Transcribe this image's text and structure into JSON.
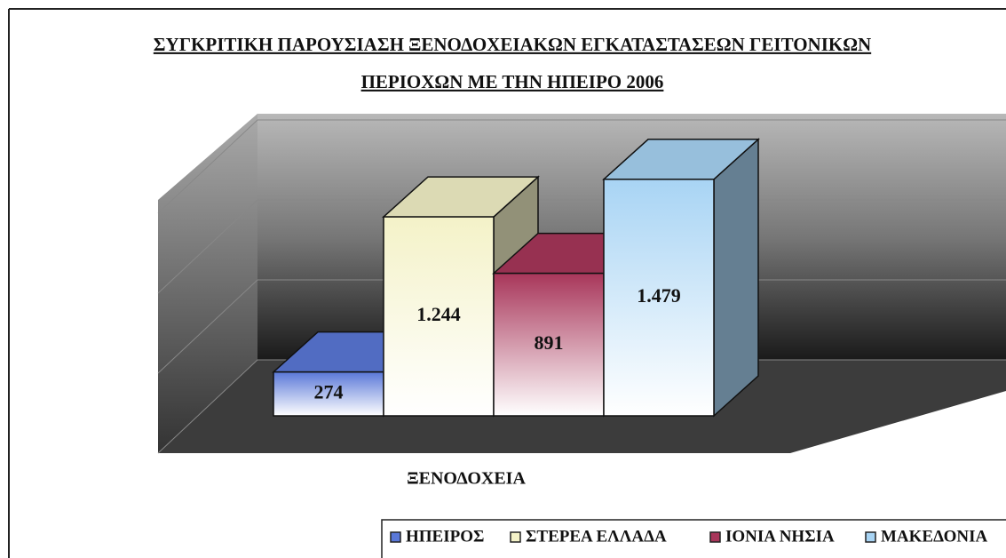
{
  "chart_data": {
    "type": "bar3d",
    "title": [
      "ΣΥΓΚΡΙΤΙΚΗ ΠΑΡΟΥΣΙΑΣΗ ΞΕΝΟΔΟΧΕΙΑΚΩΝ ΕΓΚΑΤΑΣΤΑΣΕΩΝ ΓΕΙΤΟΝΙΚΩΝ",
      "ΠΕΡΙΟΧΩΝ ΜΕ ΤΗΝ ΗΠΕΙΡΟ 2006"
    ],
    "categories": [
      "ΞΕΝΟΔΟΧΕΙΑ"
    ],
    "series": [
      {
        "name": "ΗΠΕΙΡΟΣ",
        "color": "#5a78d8",
        "values": [
          274
        ],
        "value_labels": [
          "274"
        ]
      },
      {
        "name": "ΣΤΕΡΕΑ ΕΛΛΑΔΑ",
        "color": "#f4f2c8",
        "values": [
          1244
        ],
        "value_labels": [
          "1.244"
        ]
      },
      {
        "name": "ΙΟΝΙΑ ΝΗΣΙΑ",
        "color": "#a8365a",
        "values": [
          891
        ],
        "value_labels": [
          "891"
        ]
      },
      {
        "name": "ΜΑΚΕΔΟΝΙΑ",
        "color": "#a8d4f4",
        "values": [
          1479
        ],
        "value_labels": [
          "1.479"
        ]
      }
    ],
    "ylim": [
      0,
      1500
    ],
    "yticks": [
      0,
      500,
      1000,
      1500
    ],
    "grid": true
  }
}
